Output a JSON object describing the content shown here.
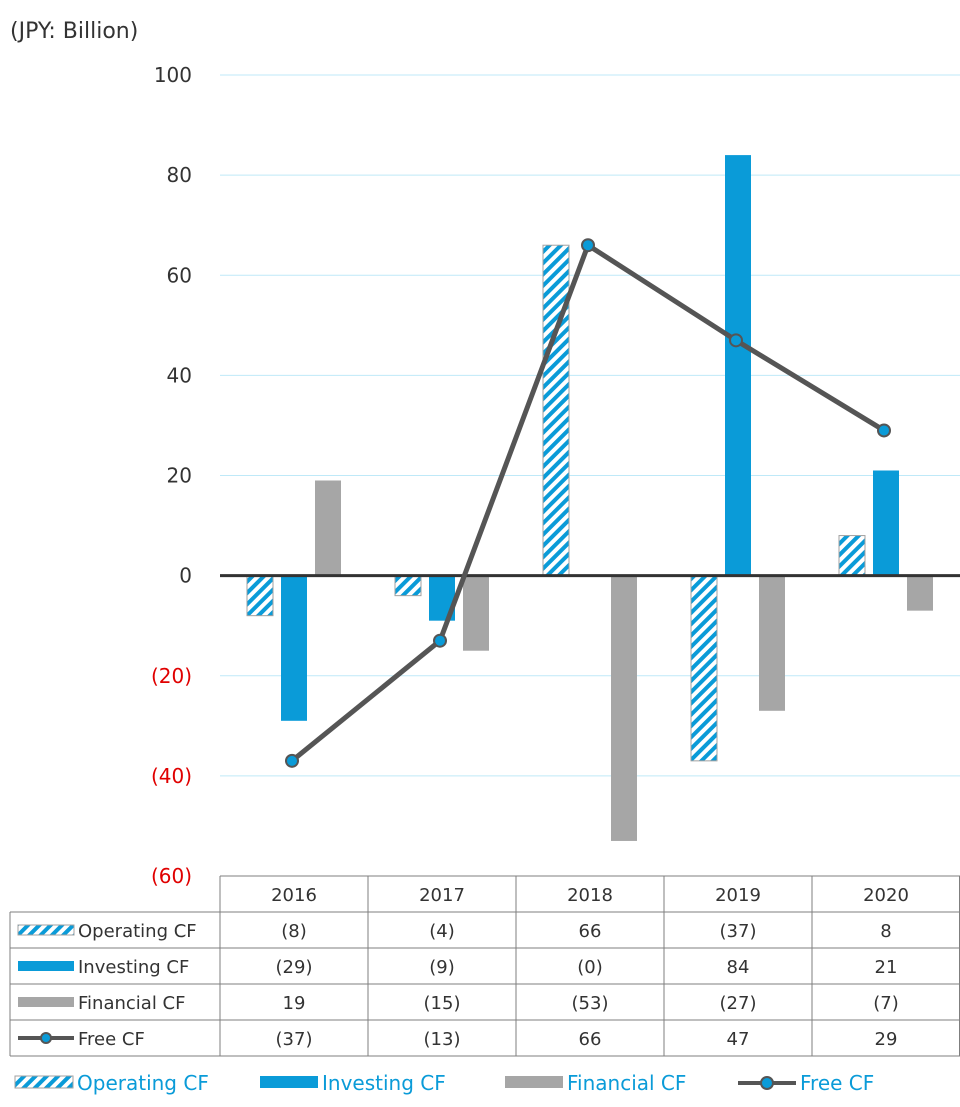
{
  "unit_label": "(JPY: Billion)",
  "colors": {
    "operating": "#0a9bd8",
    "investing": "#0a9bd8",
    "financial": "#a6a6a6",
    "free": "#555555",
    "free_marker": "#0a9bd8",
    "grid": "#bfe9f8",
    "negative_tick": "#e00000",
    "legend_text": "#0a9bd8"
  },
  "chart_data": {
    "type": "bar",
    "categories": [
      "2016",
      "2017",
      "2018",
      "2019",
      "2020"
    ],
    "ylim": [
      -60,
      100
    ],
    "yticks": [
      100,
      80,
      60,
      40,
      20,
      0,
      -20,
      -40,
      -60
    ],
    "ytick_labels": [
      "100",
      "80",
      "60",
      "40",
      "20",
      "0",
      "(20)",
      "(40)",
      "(60)"
    ],
    "grid": true,
    "legend_position": "bottom",
    "series": [
      {
        "name": "Operating CF",
        "type": "bar",
        "pattern": "hatched",
        "values": [
          -8,
          -4,
          66,
          -37,
          8
        ],
        "labels": [
          "(8)",
          "(4)",
          "66",
          "(37)",
          "8"
        ]
      },
      {
        "name": "Investing CF",
        "type": "bar",
        "values": [
          -29,
          -9,
          0,
          84,
          21
        ],
        "labels": [
          "(29)",
          "(9)",
          "(0)",
          "84",
          "21"
        ]
      },
      {
        "name": "Financial CF",
        "type": "bar",
        "values": [
          19,
          -15,
          -53,
          -27,
          -7
        ],
        "labels": [
          "19",
          "(15)",
          "(53)",
          "(27)",
          "(7)"
        ]
      },
      {
        "name": "Free CF",
        "type": "line",
        "values": [
          -37,
          -13,
          66,
          47,
          29
        ],
        "labels": [
          "(37)",
          "(13)",
          "66",
          "47",
          "29"
        ]
      }
    ]
  }
}
